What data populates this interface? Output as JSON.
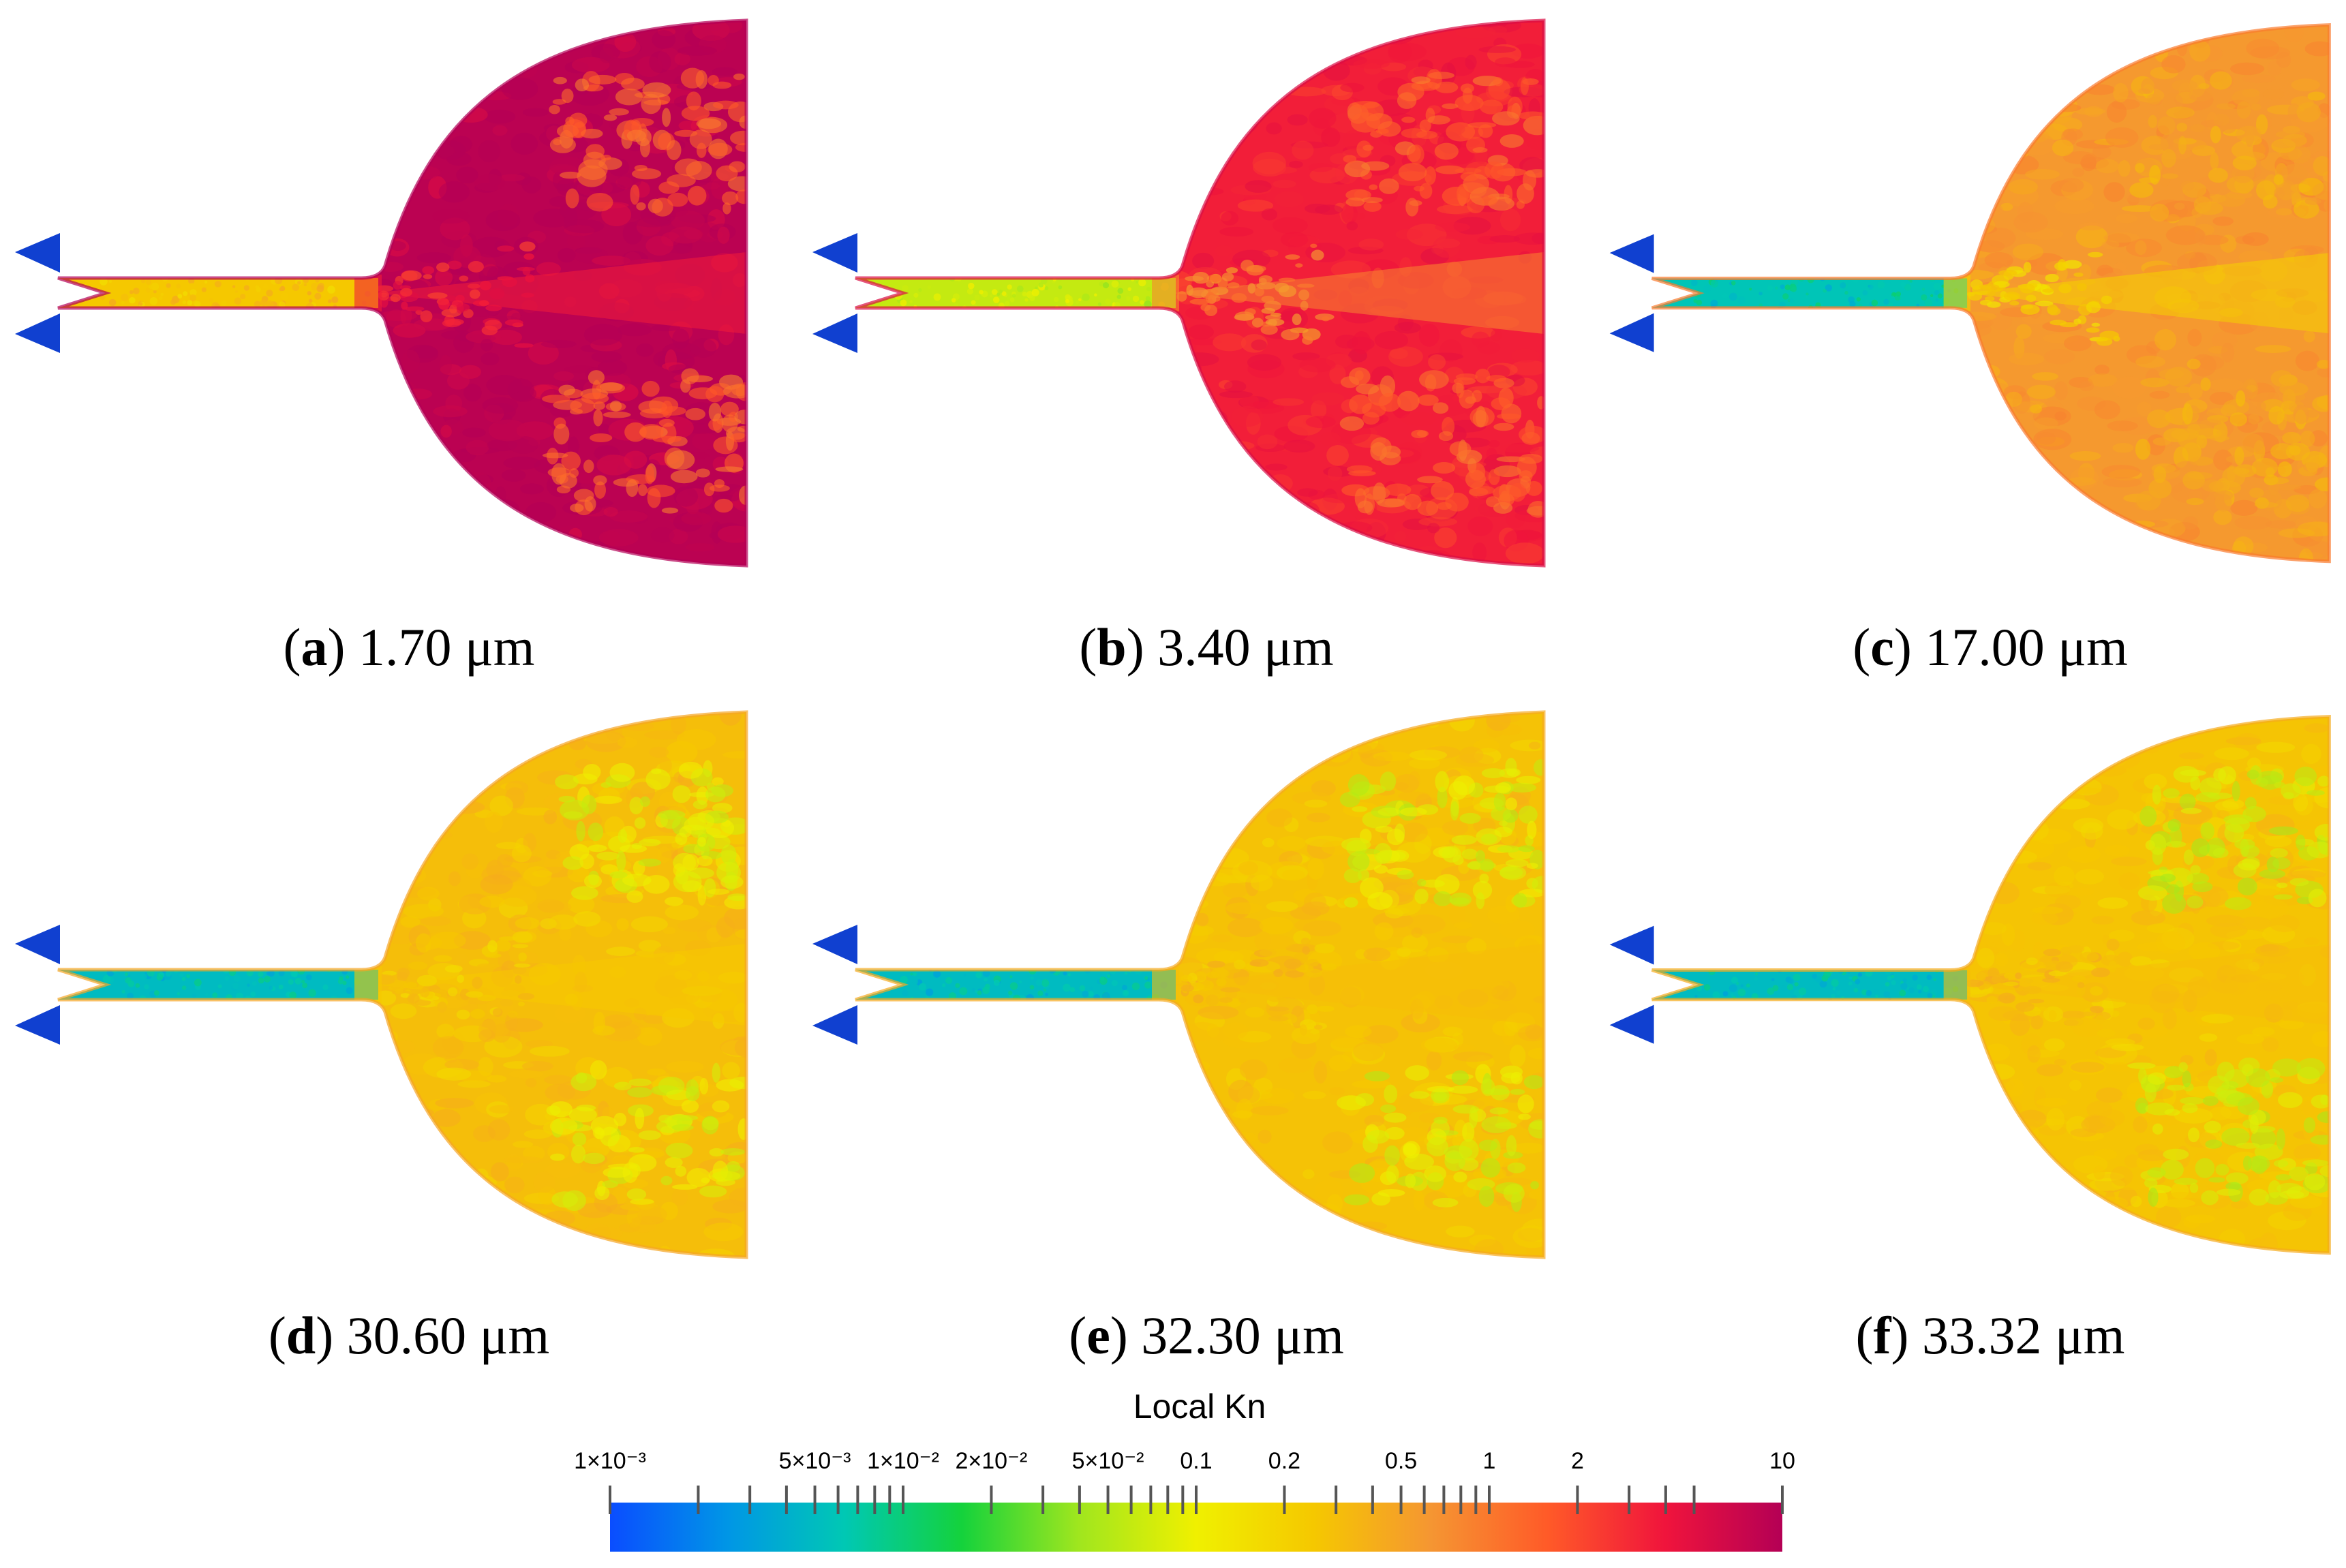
{
  "panels": [
    {
      "id": "a",
      "letter": "a",
      "value": "1.70 μm",
      "kn": {
        "channel": 0.25,
        "jet": 3.5,
        "bulk": 9.0,
        "bands": 1.2
      }
    },
    {
      "id": "b",
      "letter": "b",
      "value": "3.40 μm",
      "kn": {
        "channel": 0.06,
        "jet": 0.8,
        "bulk": 3.5,
        "bands": 1.2
      }
    },
    {
      "id": "c",
      "letter": "c",
      "value": "17.00 μm",
      "kn": {
        "channel": 0.006,
        "jet": 0.2,
        "bulk": 0.6,
        "bands": 0.4
      }
    },
    {
      "id": "d",
      "letter": "d",
      "value": "30.60 μm",
      "kn": {
        "channel": 0.005,
        "jet": 0.25,
        "bulk": 0.3,
        "bands": 0.08
      }
    },
    {
      "id": "e",
      "letter": "e",
      "value": "32.30 μm",
      "kn": {
        "channel": 0.005,
        "jet": 0.3,
        "bulk": 0.28,
        "bands": 0.07
      }
    },
    {
      "id": "f",
      "letter": "f",
      "value": "33.32 μm",
      "kn": {
        "channel": 0.005,
        "jet": 0.3,
        "bulk": 0.27,
        "bands": 0.06
      }
    }
  ],
  "colorbar": {
    "title": "Local Kn",
    "scale": "log",
    "range": [
      0.001,
      10
    ],
    "labels": [
      {
        "text": "1×10⁻³",
        "value": 0.001
      },
      {
        "text": "5×10⁻³",
        "value": 0.005
      },
      {
        "text": "1×10⁻²",
        "value": 0.01
      },
      {
        "text": "2×10⁻²",
        "value": 0.02
      },
      {
        "text": "5×10⁻²",
        "value": 0.05
      },
      {
        "text": "0.1",
        "value": 0.1
      },
      {
        "text": "0.2",
        "value": 0.2
      },
      {
        "text": "0.5",
        "value": 0.5
      },
      {
        "text": "1",
        "value": 1
      },
      {
        "text": "2",
        "value": 2
      },
      {
        "text": "10",
        "value": 10
      }
    ],
    "ticks": [
      0.001,
      0.002,
      0.003,
      0.004,
      0.005,
      0.006,
      0.007,
      0.008,
      0.009,
      0.01,
      0.02,
      0.03,
      0.04,
      0.05,
      0.06,
      0.07,
      0.08,
      0.09,
      0.1,
      0.2,
      0.3,
      0.4,
      0.5,
      0.6,
      0.7,
      0.8,
      0.9,
      1,
      2,
      3,
      4,
      5,
      10
    ],
    "colors": [
      "#0a4dff",
      "#0096e6",
      "#00c8b4",
      "#14d23c",
      "#a0e61e",
      "#f0f000",
      "#f5c800",
      "#f59632",
      "#ff5a28",
      "#f0143c",
      "#b40055"
    ]
  },
  "inlet_color": "#1040d0"
}
